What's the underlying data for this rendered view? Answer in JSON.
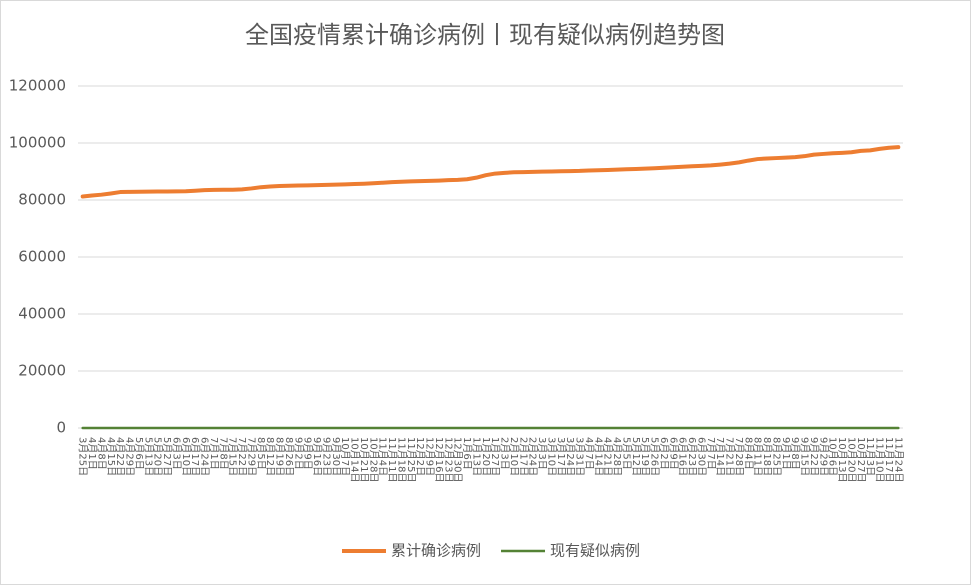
{
  "chart_data": {
    "type": "line",
    "title": "全国疫情累计确诊病例丨现有疑似病例趋势图",
    "categories": [
      "3月25日",
      "4月1日",
      "4月8日",
      "4月15日",
      "4月22日",
      "4月29日",
      "5月6日",
      "5月13日",
      "5月20日",
      "5月27日",
      "6月3日",
      "6月10日",
      "6月17日",
      "6月24日",
      "7月1日",
      "7月8日",
      "7月15日",
      "7月22日",
      "7月29日",
      "8月5日",
      "8月12日",
      "8月19日",
      "8月26日",
      "9月2日",
      "9月9日",
      "9月16日",
      "9月23日",
      "9月30日",
      "10月7日",
      "10月14日",
      "10月21日",
      "10月28日",
      "11月4日",
      "11月11日",
      "11月18日",
      "11月25日",
      "12月2日",
      "12月9日",
      "12月16日",
      "12月23日",
      "12月30日",
      "1月6日",
      "1月13日",
      "1月20日",
      "1月27日",
      "2月3日",
      "2月10日",
      "2月17日",
      "2月24日",
      "3月3日",
      "3月10日",
      "3月17日",
      "3月24日",
      "3月31日",
      "4月7日",
      "4月14日",
      "4月21日",
      "4月28日",
      "5月5日",
      "5月12日",
      "5月19日",
      "5月26日",
      "6月2日",
      "6月9日",
      "6月16日",
      "6月23日",
      "6月30日",
      "7月7日",
      "7月14日",
      "7月21日",
      "7月28日",
      "8月4日",
      "8月11日",
      "8月18日",
      "8月25日",
      "9月1日",
      "9月8日",
      "9月15日",
      "9月22日",
      "9月29日",
      "10月6日",
      "10月13日",
      "10月20日",
      "10月27日",
      "11月3日",
      "11月10日",
      "11月17日",
      "11月24日"
    ],
    "series": [
      {
        "name": "累计确诊病例",
        "color": "#ed7d31",
        "values": [
          81218,
          81589,
          81865,
          82295,
          82788,
          82862,
          82885,
          82926,
          82965,
          82995,
          83022,
          83057,
          83265,
          83449,
          83537,
          83581,
          83612,
          83729,
          84060,
          84491,
          84737,
          84895,
          85013,
          85077,
          85146,
          85214,
          85307,
          85414,
          85494,
          85611,
          85704,
          85868,
          86070,
          86267,
          86414,
          86529,
          86634,
          86701,
          86802,
          86955,
          87071,
          87278,
          87844,
          88701,
          89272,
          89522,
          89720,
          89788,
          89864,
          89943,
          90001,
          90099,
          90149,
          90217,
          90365,
          90449,
          90542,
          90671,
          90770,
          90867,
          91010,
          91122,
          91300,
          91504,
          91678,
          91821,
          91983,
          92142,
          92424,
          92755,
          93193,
          93826,
          94364,
          94572,
          94715,
          94889,
          95062,
          95380,
          95933,
          96162,
          96399,
          96546,
          96752,
          97243,
          97423,
          97929,
          98326,
          98560
        ]
      },
      {
        "name": "现有疑似病例",
        "color": "#548235",
        "values": [
          10,
          8,
          6,
          5,
          4,
          3,
          3,
          2,
          2,
          2,
          2,
          3,
          4,
          5,
          3,
          2,
          2,
          3,
          4,
          5,
          3,
          2,
          2,
          1,
          1,
          1,
          1,
          1,
          1,
          1,
          2,
          3,
          2,
          2,
          2,
          1,
          1,
          1,
          1,
          2,
          3,
          5,
          8,
          10,
          6,
          3,
          2,
          1,
          1,
          1,
          1,
          1,
          1,
          1,
          1,
          1,
          1,
          1,
          1,
          1,
          1,
          1,
          1,
          1,
          1,
          1,
          1,
          1,
          2,
          4,
          6,
          8,
          5,
          3,
          2,
          1,
          1,
          2,
          3,
          2,
          1,
          1,
          2,
          4,
          3,
          3,
          2,
          2
        ]
      }
    ],
    "ylim": [
      0,
      120000
    ],
    "yticks": [
      0,
      20000,
      40000,
      60000,
      80000,
      100000,
      120000
    ],
    "grid": true,
    "legend": "bottom"
  }
}
